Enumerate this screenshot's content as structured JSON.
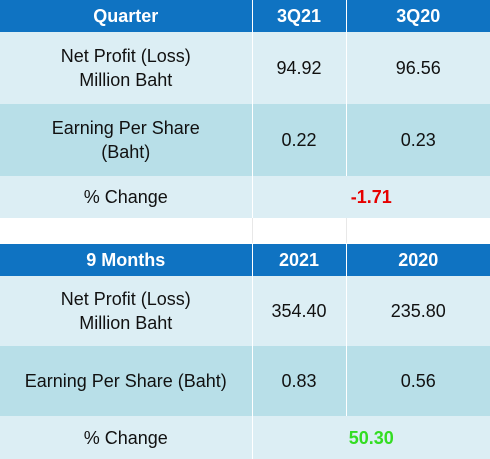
{
  "quarter_table": {
    "headers": [
      "Quarter",
      "3Q21",
      "3Q20"
    ],
    "rows": [
      {
        "label_line1": "Net Profit (Loss)",
        "label_line2": "Million Baht",
        "v1": "94.92",
        "v2": "96.56"
      },
      {
        "label_line1": "Earning Per Share",
        "label_line2": "(Baht)",
        "v1": "0.22",
        "v2": "0.23"
      }
    ],
    "change_label": "% Change",
    "change_value": "-1.71"
  },
  "nine_month_table": {
    "headers": [
      "9 Months",
      "2021",
      "2020"
    ],
    "rows": [
      {
        "label_line1": "Net Profit (Loss)",
        "label_line2": "Million Baht",
        "v1": "354.40",
        "v2": "235.80"
      },
      {
        "label": "Earning Per Share (Baht)",
        "v1": "0.83",
        "v2": "0.56"
      }
    ],
    "change_label": "% Change",
    "change_value": "50.30"
  },
  "colors": {
    "header_bg": "#0f73c2",
    "row_light": "#dceef4",
    "row_dark": "#b8dfe8",
    "negative": "#e60000",
    "positive": "#33dd22"
  }
}
